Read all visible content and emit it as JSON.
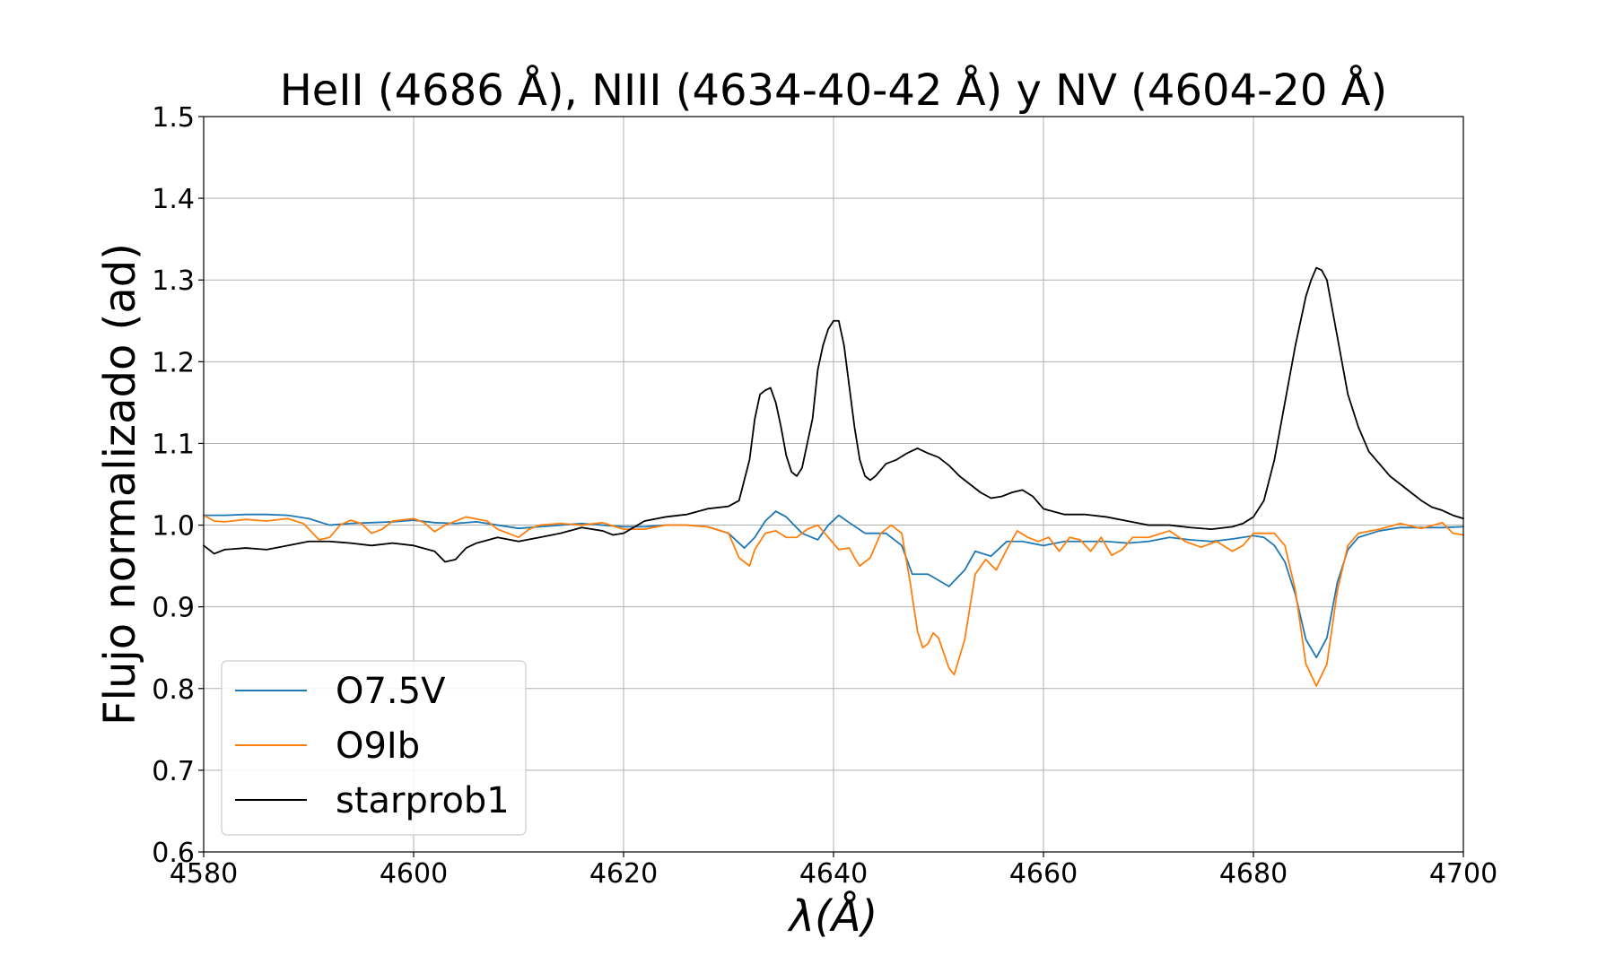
{
  "chart_data": {
    "type": "line",
    "title": "HeII (4686 Å), NIII (4634-40-42 Å) y NV (4604-20 Å)",
    "xlabel": "λ(Å)",
    "ylabel": "Flujo normalizado (ad)",
    "xlim": [
      4580,
      4700
    ],
    "ylim": [
      0.6,
      1.5
    ],
    "grid": true,
    "legend_position": "lower-left",
    "x_ticks": [
      4580,
      4600,
      4620,
      4640,
      4660,
      4680,
      4700
    ],
    "x_tick_labels": [
      "4580",
      "4600",
      "4620",
      "4640",
      "4660",
      "4680",
      "4700"
    ],
    "y_ticks": [
      0.6,
      0.7,
      0.8,
      0.9,
      1.0,
      1.1,
      1.2,
      1.3,
      1.4,
      1.5
    ],
    "y_tick_labels": [
      "0.6",
      "0.7",
      "0.8",
      "0.9",
      "1.0",
      "1.1",
      "1.2",
      "1.3",
      "1.4",
      "1.5"
    ],
    "series": [
      {
        "name": "O7.5V",
        "color": "#1f77b4",
        "points": [
          [
            4580,
            1.012
          ],
          [
            4582,
            1.012
          ],
          [
            4584,
            1.013
          ],
          [
            4586,
            1.013
          ],
          [
            4588,
            1.012
          ],
          [
            4590,
            1.008
          ],
          [
            4592,
            1.0
          ],
          [
            4594,
            1.002
          ],
          [
            4596,
            1.003
          ],
          [
            4598,
            1.004
          ],
          [
            4600,
            1.006
          ],
          [
            4602,
            1.003
          ],
          [
            4604,
            1.002
          ],
          [
            4606,
            1.004
          ],
          [
            4608,
            1.0
          ],
          [
            4610,
            0.996
          ],
          [
            4612,
            0.998
          ],
          [
            4614,
            1.0
          ],
          [
            4616,
            1.002
          ],
          [
            4618,
            1.0
          ],
          [
            4620,
            0.998
          ],
          [
            4622,
            0.998
          ],
          [
            4624,
            1.0
          ],
          [
            4626,
            1.0
          ],
          [
            4628,
            0.998
          ],
          [
            4630,
            0.99
          ],
          [
            4631.5,
            0.972
          ],
          [
            4632.5,
            0.985
          ],
          [
            4633.5,
            1.005
          ],
          [
            4634.5,
            1.017
          ],
          [
            4635.5,
            1.01
          ],
          [
            4637,
            0.99
          ],
          [
            4638.5,
            0.982
          ],
          [
            4639.5,
            1.0
          ],
          [
            4640.5,
            1.012
          ],
          [
            4641.5,
            1.003
          ],
          [
            4643,
            0.99
          ],
          [
            4645,
            0.99
          ],
          [
            4646.5,
            0.975
          ],
          [
            4647.5,
            0.94
          ],
          [
            4649,
            0.94
          ],
          [
            4651,
            0.925
          ],
          [
            4652.5,
            0.945
          ],
          [
            4653.5,
            0.968
          ],
          [
            4655,
            0.962
          ],
          [
            4656.5,
            0.98
          ],
          [
            4658,
            0.98
          ],
          [
            4660,
            0.975
          ],
          [
            4662,
            0.98
          ],
          [
            4664,
            0.98
          ],
          [
            4666,
            0.98
          ],
          [
            4668,
            0.978
          ],
          [
            4670,
            0.98
          ],
          [
            4672,
            0.985
          ],
          [
            4674,
            0.982
          ],
          [
            4676,
            0.98
          ],
          [
            4678,
            0.983
          ],
          [
            4680,
            0.987
          ],
          [
            4681,
            0.985
          ],
          [
            4682,
            0.975
          ],
          [
            4683,
            0.955
          ],
          [
            4684,
            0.915
          ],
          [
            4685,
            0.86
          ],
          [
            4686,
            0.838
          ],
          [
            4687,
            0.862
          ],
          [
            4688,
            0.93
          ],
          [
            4689,
            0.97
          ],
          [
            4690,
            0.985
          ],
          [
            4692,
            0.993
          ],
          [
            4694,
            0.997
          ],
          [
            4696,
            0.997
          ],
          [
            4698,
            0.997
          ],
          [
            4700,
            0.998
          ]
        ]
      },
      {
        "name": "O9Ib",
        "color": "#ff7f0e",
        "points": [
          [
            4580,
            1.012
          ],
          [
            4581,
            1.005
          ],
          [
            4582,
            1.004
          ],
          [
            4584,
            1.007
          ],
          [
            4586,
            1.005
          ],
          [
            4588,
            1.008
          ],
          [
            4589.5,
            1.002
          ],
          [
            4591,
            0.982
          ],
          [
            4592,
            0.985
          ],
          [
            4593,
            1.0
          ],
          [
            4594,
            1.006
          ],
          [
            4595,
            1.002
          ],
          [
            4596,
            0.99
          ],
          [
            4597,
            0.995
          ],
          [
            4598,
            1.005
          ],
          [
            4600,
            1.008
          ],
          [
            4601,
            1.003
          ],
          [
            4602,
            0.992
          ],
          [
            4603,
            1.0
          ],
          [
            4605,
            1.01
          ],
          [
            4607,
            1.005
          ],
          [
            4608,
            0.995
          ],
          [
            4609,
            0.99
          ],
          [
            4610,
            0.985
          ],
          [
            4611,
            0.995
          ],
          [
            4612,
            1.0
          ],
          [
            4614,
            1.002
          ],
          [
            4616,
            1.0
          ],
          [
            4618,
            1.003
          ],
          [
            4620,
            0.995
          ],
          [
            4622,
            0.995
          ],
          [
            4624,
            1.0
          ],
          [
            4626,
            1.0
          ],
          [
            4628,
            0.998
          ],
          [
            4630,
            0.99
          ],
          [
            4631,
            0.96
          ],
          [
            4632,
            0.95
          ],
          [
            4632.5,
            0.97
          ],
          [
            4633.5,
            0.99
          ],
          [
            4634.5,
            0.993
          ],
          [
            4635.5,
            0.985
          ],
          [
            4636.5,
            0.985
          ],
          [
            4637.5,
            0.995
          ],
          [
            4638.5,
            1.0
          ],
          [
            4639.5,
            0.985
          ],
          [
            4640.5,
            0.97
          ],
          [
            4641.5,
            0.972
          ],
          [
            4642,
            0.96
          ],
          [
            4642.5,
            0.95
          ],
          [
            4643.5,
            0.96
          ],
          [
            4644.5,
            0.99
          ],
          [
            4645.5,
            1.0
          ],
          [
            4646.5,
            0.99
          ],
          [
            4647.3,
            0.93
          ],
          [
            4648,
            0.87
          ],
          [
            4648.5,
            0.85
          ],
          [
            4649,
            0.855
          ],
          [
            4649.5,
            0.868
          ],
          [
            4650,
            0.862
          ],
          [
            4651,
            0.825
          ],
          [
            4651.5,
            0.817
          ],
          [
            4652.5,
            0.86
          ],
          [
            4653.5,
            0.94
          ],
          [
            4654.5,
            0.958
          ],
          [
            4655.5,
            0.945
          ],
          [
            4656.5,
            0.97
          ],
          [
            4657.5,
            0.993
          ],
          [
            4658.5,
            0.985
          ],
          [
            4659.5,
            0.98
          ],
          [
            4660.5,
            0.985
          ],
          [
            4661.5,
            0.968
          ],
          [
            4662.5,
            0.985
          ],
          [
            4663.5,
            0.982
          ],
          [
            4664.5,
            0.968
          ],
          [
            4665.5,
            0.985
          ],
          [
            4666.5,
            0.963
          ],
          [
            4667.5,
            0.97
          ],
          [
            4668.5,
            0.985
          ],
          [
            4670,
            0.985
          ],
          [
            4672,
            0.993
          ],
          [
            4673.5,
            0.98
          ],
          [
            4675,
            0.973
          ],
          [
            4676.5,
            0.98
          ],
          [
            4678,
            0.968
          ],
          [
            4679,
            0.975
          ],
          [
            4680,
            0.99
          ],
          [
            4682,
            0.99
          ],
          [
            4683,
            0.975
          ],
          [
            4684,
            0.92
          ],
          [
            4685,
            0.83
          ],
          [
            4686,
            0.803
          ],
          [
            4687,
            0.83
          ],
          [
            4688,
            0.92
          ],
          [
            4689,
            0.975
          ],
          [
            4690,
            0.99
          ],
          [
            4692,
            0.995
          ],
          [
            4694,
            1.002
          ],
          [
            4696,
            0.996
          ],
          [
            4698,
            1.003
          ],
          [
            4699,
            0.99
          ],
          [
            4700,
            0.988
          ]
        ]
      },
      {
        "name": "starprob1",
        "color": "#000000",
        "points": [
          [
            4580,
            0.975
          ],
          [
            4581,
            0.965
          ],
          [
            4582,
            0.97
          ],
          [
            4584,
            0.972
          ],
          [
            4586,
            0.97
          ],
          [
            4588,
            0.975
          ],
          [
            4590,
            0.98
          ],
          [
            4592,
            0.98
          ],
          [
            4594,
            0.978
          ],
          [
            4596,
            0.975
          ],
          [
            4598,
            0.978
          ],
          [
            4600,
            0.975
          ],
          [
            4602,
            0.968
          ],
          [
            4603,
            0.955
          ],
          [
            4604,
            0.958
          ],
          [
            4605,
            0.972
          ],
          [
            4606,
            0.978
          ],
          [
            4608,
            0.985
          ],
          [
            4610,
            0.98
          ],
          [
            4612,
            0.985
          ],
          [
            4614,
            0.99
          ],
          [
            4616,
            0.997
          ],
          [
            4618,
            0.993
          ],
          [
            4619,
            0.988
          ],
          [
            4620,
            0.99
          ],
          [
            4622,
            1.005
          ],
          [
            4624,
            1.01
          ],
          [
            4626,
            1.013
          ],
          [
            4628,
            1.02
          ],
          [
            4630,
            1.023
          ],
          [
            4631,
            1.03
          ],
          [
            4632,
            1.08
          ],
          [
            4632.5,
            1.13
          ],
          [
            4633,
            1.16
          ],
          [
            4633.5,
            1.165
          ],
          [
            4634,
            1.168
          ],
          [
            4634.5,
            1.15
          ],
          [
            4635,
            1.12
          ],
          [
            4635.5,
            1.085
          ],
          [
            4636,
            1.065
          ],
          [
            4636.5,
            1.06
          ],
          [
            4637,
            1.07
          ],
          [
            4638,
            1.13
          ],
          [
            4638.5,
            1.19
          ],
          [
            4639,
            1.22
          ],
          [
            4639.5,
            1.24
          ],
          [
            4640,
            1.25
          ],
          [
            4640.5,
            1.25
          ],
          [
            4641,
            1.22
          ],
          [
            4641.5,
            1.17
          ],
          [
            4642,
            1.12
          ],
          [
            4642.5,
            1.08
          ],
          [
            4643,
            1.06
          ],
          [
            4643.5,
            1.055
          ],
          [
            4644,
            1.06
          ],
          [
            4645,
            1.075
          ],
          [
            4646,
            1.08
          ],
          [
            4647,
            1.088
          ],
          [
            4648,
            1.094
          ],
          [
            4649,
            1.088
          ],
          [
            4650,
            1.083
          ],
          [
            4651,
            1.073
          ],
          [
            4652,
            1.06
          ],
          [
            4653,
            1.05
          ],
          [
            4654,
            1.04
          ],
          [
            4655,
            1.033
          ],
          [
            4656,
            1.035
          ],
          [
            4657,
            1.04
          ],
          [
            4658,
            1.043
          ],
          [
            4659,
            1.035
          ],
          [
            4660,
            1.02
          ],
          [
            4662,
            1.013
          ],
          [
            4664,
            1.013
          ],
          [
            4666,
            1.01
          ],
          [
            4668,
            1.005
          ],
          [
            4670,
            1.0
          ],
          [
            4672,
            1.0
          ],
          [
            4674,
            0.997
          ],
          [
            4676,
            0.995
          ],
          [
            4678,
            0.998
          ],
          [
            4679,
            1.002
          ],
          [
            4680,
            1.01
          ],
          [
            4681,
            1.03
          ],
          [
            4682,
            1.08
          ],
          [
            4683,
            1.15
          ],
          [
            4684,
            1.22
          ],
          [
            4685,
            1.28
          ],
          [
            4685.5,
            1.3
          ],
          [
            4686,
            1.315
          ],
          [
            4686.5,
            1.312
          ],
          [
            4687,
            1.3
          ],
          [
            4688,
            1.23
          ],
          [
            4689,
            1.16
          ],
          [
            4690,
            1.12
          ],
          [
            4691,
            1.09
          ],
          [
            4692,
            1.075
          ],
          [
            4693,
            1.06
          ],
          [
            4694,
            1.05
          ],
          [
            4695,
            1.04
          ],
          [
            4696,
            1.03
          ],
          [
            4697,
            1.022
          ],
          [
            4698,
            1.018
          ],
          [
            4699,
            1.012
          ],
          [
            4700,
            1.008
          ]
        ]
      }
    ]
  }
}
